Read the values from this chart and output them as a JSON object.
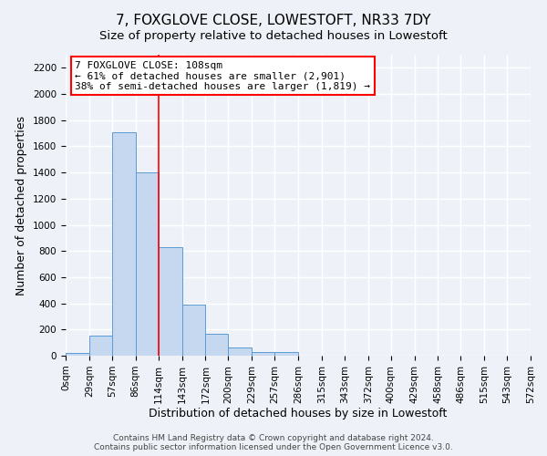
{
  "title": "7, FOXGLOVE CLOSE, LOWESTOFT, NR33 7DY",
  "subtitle": "Size of property relative to detached houses in Lowestoft",
  "xlabel": "Distribution of detached houses by size in Lowestoft",
  "ylabel": "Number of detached properties",
  "bar_color": "#c5d8f0",
  "bar_edge_color": "#5b9bd5",
  "bin_edges": [
    0,
    29,
    57,
    86,
    114,
    143,
    172,
    200,
    229,
    257,
    286,
    315,
    343,
    372,
    400,
    429,
    458,
    486,
    515,
    543,
    572
  ],
  "bar_heights": [
    20,
    155,
    1710,
    1400,
    830,
    390,
    165,
    65,
    25,
    25,
    0,
    0,
    0,
    0,
    0,
    0,
    0,
    0,
    0,
    0
  ],
  "red_line_x": 114,
  "annotation_title": "7 FOXGLOVE CLOSE: 108sqm",
  "annotation_line1": "← 61% of detached houses are smaller (2,901)",
  "annotation_line2": "38% of semi-detached houses are larger (1,819) →",
  "ylim": [
    0,
    2300
  ],
  "yticks": [
    0,
    200,
    400,
    600,
    800,
    1000,
    1200,
    1400,
    1600,
    1800,
    2000,
    2200
  ],
  "tick_labels": [
    "0sqm",
    "29sqm",
    "57sqm",
    "86sqm",
    "114sqm",
    "143sqm",
    "172sqm",
    "200sqm",
    "229sqm",
    "257sqm",
    "286sqm",
    "315sqm",
    "343sqm",
    "372sqm",
    "400sqm",
    "429sqm",
    "458sqm",
    "486sqm",
    "515sqm",
    "543sqm",
    "572sqm"
  ],
  "footer_line1": "Contains HM Land Registry data © Crown copyright and database right 2024.",
  "footer_line2": "Contains public sector information licensed under the Open Government Licence v3.0.",
  "background_color": "#eef2f8",
  "grid_color": "#ffffff",
  "title_fontsize": 11,
  "subtitle_fontsize": 9.5,
  "axis_label_fontsize": 9,
  "tick_fontsize": 7.5,
  "footer_fontsize": 6.5
}
